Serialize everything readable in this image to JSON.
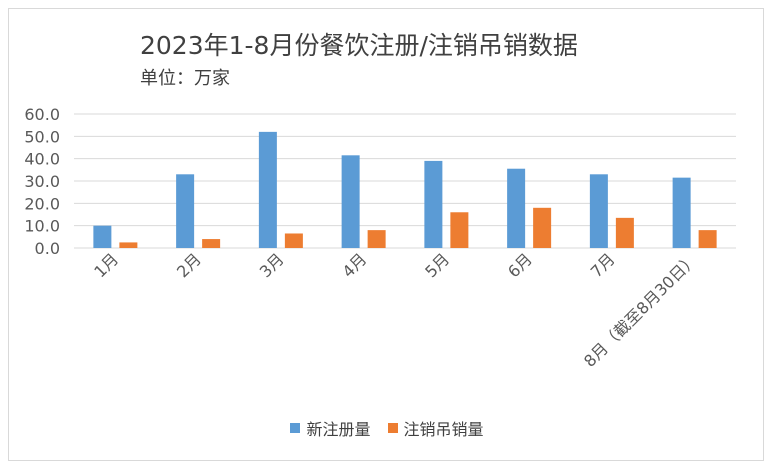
{
  "chart_data": {
    "type": "bar",
    "title": "2023年1-8月份餐饮注册/注销吊销数据",
    "subtitle": "单位：万家",
    "categories": [
      "1月",
      "2月",
      "3月",
      "4月",
      "5月",
      "6月",
      "7月",
      "8月（截至8月30日）"
    ],
    "series": [
      {
        "name": "新注册量",
        "color": "#5b9bd5",
        "values": [
          10.0,
          33.0,
          52.0,
          41.5,
          39.0,
          35.5,
          33.0,
          31.5
        ]
      },
      {
        "name": "注销吊销量",
        "color": "#ed7d31",
        "values": [
          2.5,
          4.0,
          6.5,
          8.0,
          16.0,
          18.0,
          13.5,
          8.0
        ]
      }
    ],
    "yticks": [
      "0.0",
      "10.0",
      "20.0",
      "30.0",
      "40.0",
      "50.0",
      "60.0"
    ],
    "ylim": [
      0,
      60
    ],
    "grid": true,
    "legend_position": "bottom"
  }
}
